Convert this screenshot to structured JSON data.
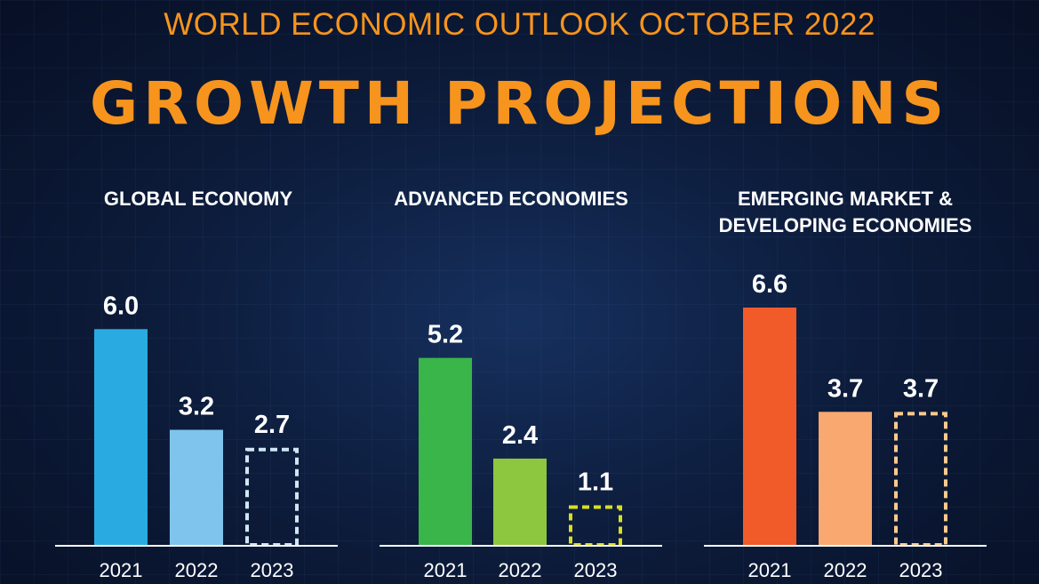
{
  "header": {
    "subtitle": "WORLD ECONOMIC OUTLOOK OCTOBER 2022",
    "title": "GROWTH PROJECTIONS"
  },
  "colors": {
    "background": "#0d1d3d",
    "accent": "#f7941d"
  },
  "chart_data": [
    {
      "type": "bar",
      "title": [
        "GLOBAL ECONOMY"
      ],
      "categories": [
        "2021",
        "2022",
        "2023"
      ],
      "values": [
        6.0,
        3.2,
        2.7
      ],
      "value_labels": [
        "6.0",
        "3.2",
        "2.7"
      ],
      "projected": [
        false,
        false,
        true
      ],
      "colors": [
        "#29abe2",
        "#7fc4ec",
        "#cfe6f5"
      ],
      "ylim": [
        0,
        6.6
      ]
    },
    {
      "type": "bar",
      "title": [
        "ADVANCED ECONOMIES"
      ],
      "categories": [
        "2021",
        "2022",
        "2023"
      ],
      "values": [
        5.2,
        2.4,
        1.1
      ],
      "value_labels": [
        "5.2",
        "2.4",
        "1.1"
      ],
      "projected": [
        false,
        false,
        true
      ],
      "colors": [
        "#39b54a",
        "#8dc63f",
        "#d7df23"
      ],
      "ylim": [
        0,
        6.6
      ]
    },
    {
      "type": "bar",
      "title": [
        "EMERGING MARKET &",
        "DEVELOPING ECONOMIES"
      ],
      "categories": [
        "2021",
        "2022",
        "2023"
      ],
      "values": [
        6.6,
        3.7,
        3.7
      ],
      "value_labels": [
        "6.6",
        "3.7",
        "3.7"
      ],
      "projected": [
        false,
        false,
        true
      ],
      "colors": [
        "#f15a29",
        "#f9a870",
        "#fbc98e"
      ],
      "ylim": [
        0,
        6.6
      ]
    }
  ]
}
